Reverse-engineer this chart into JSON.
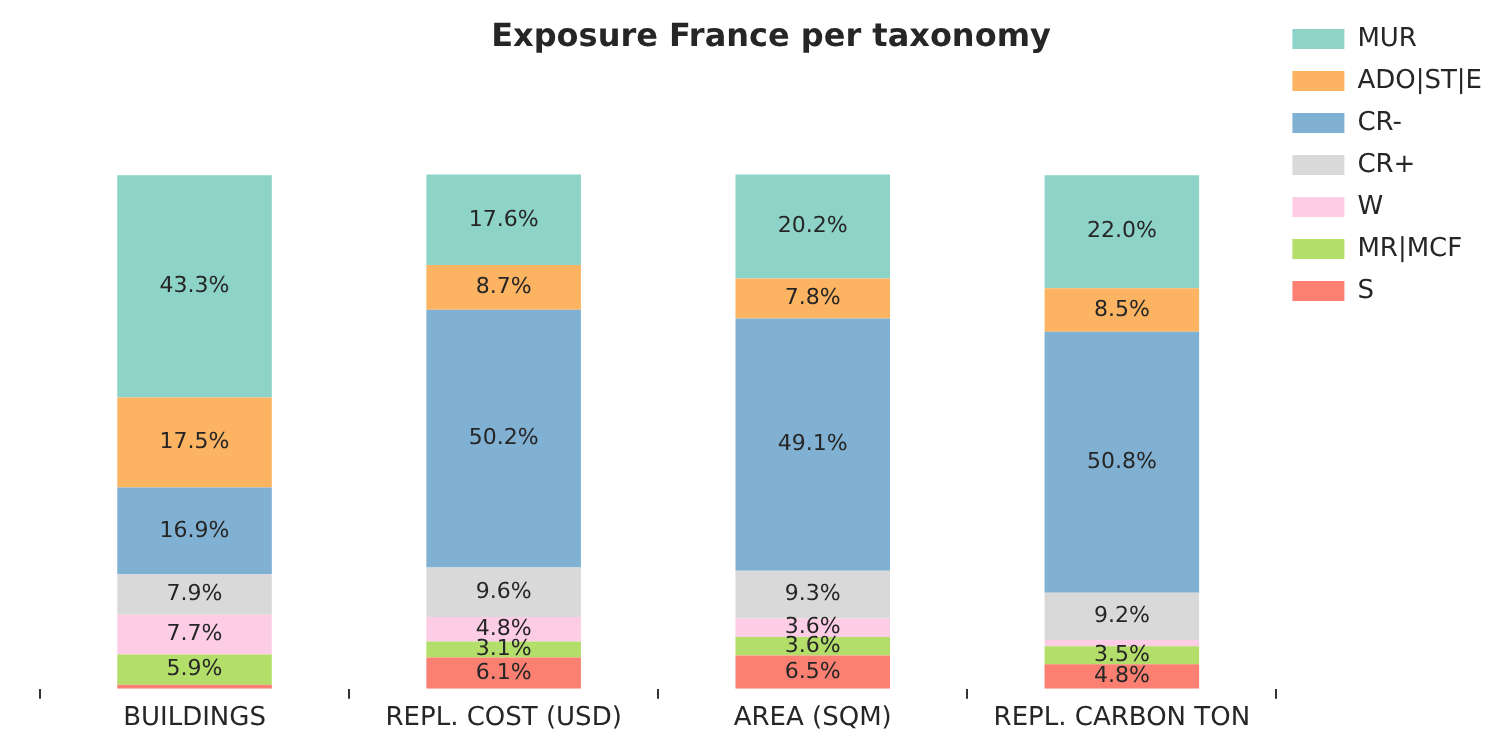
{
  "chart_data": {
    "type": "bar",
    "title": "Exposure France per taxonomy",
    "stacked": true,
    "legend": "top right",
    "categories": [
      "BUILDINGS",
      "REPL. COST (USD)",
      "AREA (SQM)",
      "REPL. CARBON TON"
    ],
    "series": [
      {
        "name": "S",
        "color": "#fb8072",
        "values": [
          0.8,
          6.1,
          6.5,
          4.8
        ],
        "value_labels": [
          null,
          "6.1%",
          "6.5%",
          "4.8%"
        ]
      },
      {
        "name": "MR|MCF",
        "color": "#b3de69",
        "values": [
          5.9,
          3.1,
          3.6,
          3.5
        ],
        "value_labels": [
          "5.9%",
          "3.1%",
          "3.6%",
          "3.5%"
        ]
      },
      {
        "name": "W",
        "color": "#fccde5",
        "values": [
          7.7,
          4.8,
          3.6,
          1.2
        ],
        "value_labels": [
          "7.7%",
          "4.8%",
          "3.6%",
          null
        ]
      },
      {
        "name": "CR+",
        "color": "#d9d9d9",
        "values": [
          7.9,
          9.6,
          9.3,
          9.2
        ],
        "value_labels": [
          "7.9%",
          "9.6%",
          "9.3%",
          "9.2%"
        ]
      },
      {
        "name": "CR-",
        "color": "#80b1d3",
        "values": [
          16.9,
          50.2,
          49.1,
          50.8
        ],
        "value_labels": [
          "16.9%",
          "50.2%",
          "49.1%",
          "50.8%"
        ]
      },
      {
        "name": "ADO|ST|E",
        "color": "#fdb462",
        "values": [
          17.5,
          8.7,
          7.8,
          8.5
        ],
        "value_labels": [
          "17.5%",
          "8.7%",
          "7.8%",
          "8.5%"
        ]
      },
      {
        "name": "MUR",
        "color": "#8dd3c7",
        "values": [
          43.3,
          17.6,
          20.2,
          22.0
        ],
        "value_labels": [
          "43.3%",
          "17.6%",
          "20.2%",
          "22.0%"
        ]
      }
    ]
  }
}
